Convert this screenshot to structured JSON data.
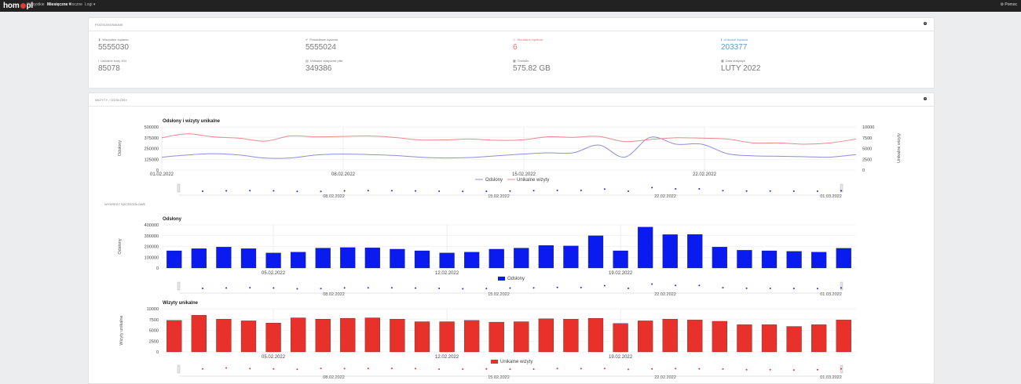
{
  "nav": {
    "brand_left": "hom",
    "brand_right": "pl",
    "items": [
      {
        "label": "Wszystkie",
        "active": false
      },
      {
        "label": "Miesięczne ▾",
        "active": true
      },
      {
        "label": "Roczne",
        "active": false
      },
      {
        "label": "Logi ▾",
        "active": false
      }
    ],
    "right_label": "⚙ Pomoc"
  },
  "summary": {
    "title": "PODSUMOWANIE",
    "help": "?",
    "stats": [
      {
        "label": "Wszystkie żądania",
        "value": "5555030",
        "icon": "download-icon",
        "color": "#777777"
      },
      {
        "label": "Prawidłowe żądania",
        "value": "5555024",
        "icon": "check-icon",
        "color": "#777777"
      },
      {
        "label": "Nieudane żądania",
        "value": "6",
        "icon": "warning-icon",
        "color": "#e57373"
      },
      {
        "label": "Unikalne żądania",
        "value": "203377",
        "icon": "info-icon",
        "color": "#5b9bd5"
      },
      {
        "label": "Unikalne kody 404",
        "value": "85078",
        "icon": "exclamation-icon",
        "color": "#777777"
      },
      {
        "label": "Unikalne statyczne pliki",
        "value": "349386",
        "icon": "file-icon",
        "color": "#777777"
      },
      {
        "label": "Transfer",
        "value": "575.82 GB",
        "icon": "chart-icon",
        "color": "#777777"
      },
      {
        "label": "Data statystyk",
        "value": "LUTY 2022",
        "icon": "calendar-icon",
        "color": "#777777"
      }
    ]
  },
  "visits": {
    "title": "WIZYTY / ODSŁONY",
    "help": "?",
    "details_label": "WYKRESY SZCZEGÓŁOWE"
  },
  "chart_data": [
    {
      "type": "line",
      "title": "Odsłony i wizyty unikalne",
      "xlabel": "",
      "ylabel": "Odsłony",
      "y2label": "Unikalne wizyty",
      "ylim": [
        0,
        500000
      ],
      "y2lim": [
        0,
        10000
      ],
      "yticks": [
        "500000",
        "375000",
        "250000",
        "125000",
        "0"
      ],
      "y2ticks": [
        "10000",
        "7500",
        "5000",
        "2500",
        "0"
      ],
      "xtick_labels": [
        "01.02.2022",
        "08.02.2022",
        "15.02.2022",
        "22.02.2022"
      ],
      "x": [
        "01.02",
        "02.02",
        "03.02",
        "04.02",
        "05.02",
        "06.02",
        "07.02",
        "08.02",
        "09.02",
        "10.02",
        "11.02",
        "12.02",
        "13.02",
        "14.02",
        "15.02",
        "16.02",
        "17.02",
        "18.02",
        "19.02",
        "20.02",
        "21.02",
        "22.02",
        "23.02",
        "24.02",
        "25.02",
        "26.02",
        "27.02",
        "28.02"
      ],
      "series": [
        {
          "name": "Odsłony",
          "color": "#8a8fd8",
          "values": [
            150000,
            175000,
            190000,
            175000,
            140000,
            140000,
            175000,
            185000,
            180000,
            170000,
            150000,
            140000,
            145000,
            165000,
            185000,
            200000,
            200000,
            290000,
            150000,
            380000,
            300000,
            300000,
            190000,
            165000,
            160000,
            155000,
            150000,
            180000
          ]
        },
        {
          "name": "Unikalne wizyty",
          "color": "#e88a8a",
          "values": [
            7500,
            8400,
            7700,
            7400,
            6700,
            7900,
            7700,
            7800,
            7900,
            7600,
            7000,
            7000,
            7200,
            6900,
            7000,
            7700,
            7600,
            7800,
            6600,
            7100,
            7500,
            7400,
            7200,
            6300,
            6300,
            6000,
            6300,
            7200
          ]
        }
      ],
      "legend": "bottom-center"
    },
    {
      "type": "bar",
      "title": "Odsłony",
      "ylabel": "Odsłony",
      "ylim": [
        0,
        400000
      ],
      "yticks": [
        "400000",
        "300000",
        "200000",
        "100000",
        "0"
      ],
      "xtick_labels": [
        "05.02.2022",
        "12.02.2022",
        "19.02.2022"
      ],
      "categories": [
        "01.02",
        "02.02",
        "03.02",
        "04.02",
        "05.02",
        "06.02",
        "07.02",
        "08.02",
        "09.02",
        "10.02",
        "11.02",
        "12.02",
        "13.02",
        "14.02",
        "15.02",
        "16.02",
        "17.02",
        "18.02",
        "19.02",
        "20.02",
        "21.02",
        "22.02",
        "23.02",
        "24.02",
        "25.02",
        "26.02",
        "27.02",
        "28.02"
      ],
      "series": [
        {
          "name": "Odsłony",
          "color": "#0a1bf0",
          "values": [
            160000,
            180000,
            195000,
            180000,
            140000,
            148000,
            185000,
            190000,
            188000,
            175000,
            160000,
            140000,
            148000,
            175000,
            185000,
            210000,
            205000,
            300000,
            160000,
            380000,
            310000,
            312000,
            195000,
            165000,
            160000,
            155000,
            148000,
            183000
          ]
        }
      ],
      "legend": "bottom-center"
    },
    {
      "type": "bar",
      "title": "Wizyty unikalne",
      "ylabel": "Wizyty unikalne",
      "ylim": [
        0,
        10000
      ],
      "yticks": [
        "10000",
        "7500",
        "5000",
        "2500",
        "0"
      ],
      "xtick_labels": [
        "05.02.2022",
        "12.02.2022",
        "19.02.2022"
      ],
      "categories": [
        "01.02",
        "02.02",
        "03.02",
        "04.02",
        "05.02",
        "06.02",
        "07.02",
        "08.02",
        "09.02",
        "10.02",
        "11.02",
        "12.02",
        "13.02",
        "14.02",
        "15.02",
        "16.02",
        "17.02",
        "18.02",
        "19.02",
        "20.02",
        "21.02",
        "22.02",
        "23.02",
        "24.02",
        "25.02",
        "26.02",
        "27.02",
        "28.02"
      ],
      "series": [
        {
          "name": "Unikalne wizyty",
          "color": "#e8312a",
          "values": [
            7300,
            8500,
            7600,
            7200,
            6700,
            7900,
            7600,
            7800,
            7900,
            7600,
            7000,
            7000,
            7300,
            6900,
            7000,
            7700,
            7600,
            7800,
            6600,
            7200,
            7600,
            7400,
            7100,
            6300,
            6300,
            5900,
            6300,
            7400
          ]
        }
      ],
      "legend": "bottom-center"
    }
  ],
  "navigator_labels": [
    "08.02.2022",
    "15.02.2022",
    "22.02.2022",
    "01.03.2022"
  ]
}
